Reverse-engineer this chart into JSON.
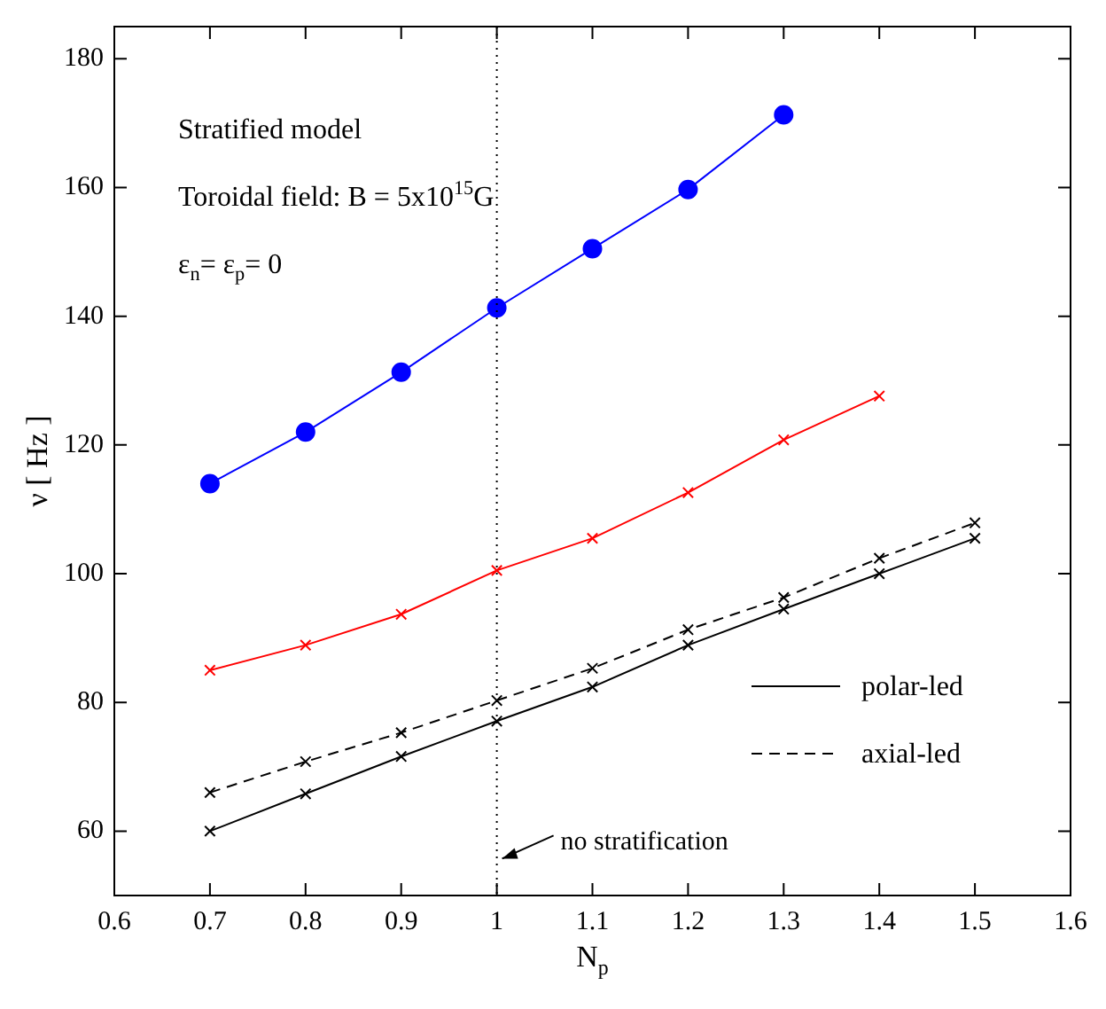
{
  "chart_data": {
    "type": "line",
    "xlabel": "N$_{p}$",
    "ylabel": "ν [ Hz ]",
    "xlim": [
      0.6,
      1.6
    ],
    "xticks": [
      0.6,
      0.7,
      0.8,
      0.9,
      1,
      1.1,
      1.2,
      1.3,
      1.4,
      1.5,
      1.6
    ],
    "ylim": [
      50,
      185
    ],
    "yticks": [
      60,
      80,
      100,
      120,
      140,
      160,
      180
    ],
    "grid": false,
    "legend": "bottom right",
    "series": [
      {
        "color": "#0000ff",
        "marker": "circle",
        "line_style": "solid",
        "x": [
          0.7,
          0.8,
          0.9,
          1,
          1.1,
          1.2,
          1.3
        ],
        "values": [
          114,
          122,
          131.3,
          141.3,
          150.5,
          159.7,
          171.3
        ]
      },
      {
        "color": "#ff0000",
        "marker": "cross",
        "line_style": "solid",
        "x": [
          0.7,
          0.8,
          0.9,
          1,
          1.1,
          1.2,
          1.3,
          1.4
        ],
        "values": [
          85,
          88.9,
          93.7,
          100.5,
          105.5,
          112.6,
          120.8,
          127.6
        ]
      },
      {
        "name": "polar-led",
        "color": "#000000",
        "marker": "cross",
        "line_style": "solid",
        "x": [
          0.7,
          0.8,
          0.9,
          1,
          1.1,
          1.2,
          1.3,
          1.4,
          1.5
        ],
        "values": [
          60,
          65.8,
          71.6,
          77.1,
          82.4,
          88.9,
          94.5,
          100,
          105.5
        ]
      },
      {
        "name": "axial-led",
        "color": "#000000",
        "marker": "cross",
        "line_style": "dashed",
        "x": [
          0.7,
          0.8,
          0.9,
          1,
          1.1,
          1.2,
          1.3,
          1.4,
          1.5
        ],
        "values": [
          66,
          70.8,
          75.3,
          80.3,
          85.3,
          91.3,
          96.3,
          102.4,
          107.9
        ]
      }
    ],
    "ref_lines": [
      {
        "axis": "x",
        "value": 1,
        "line_style": "dotted",
        "color": "#000000"
      }
    ],
    "annotations": [
      "Stratified model",
      "Toroidal field: B = 5x10$^{15}$G",
      "ε$_{n}$= ε$_{p}$= 0",
      {
        "text": "no stratification",
        "x": 1,
        "y": 56
      }
    ]
  }
}
